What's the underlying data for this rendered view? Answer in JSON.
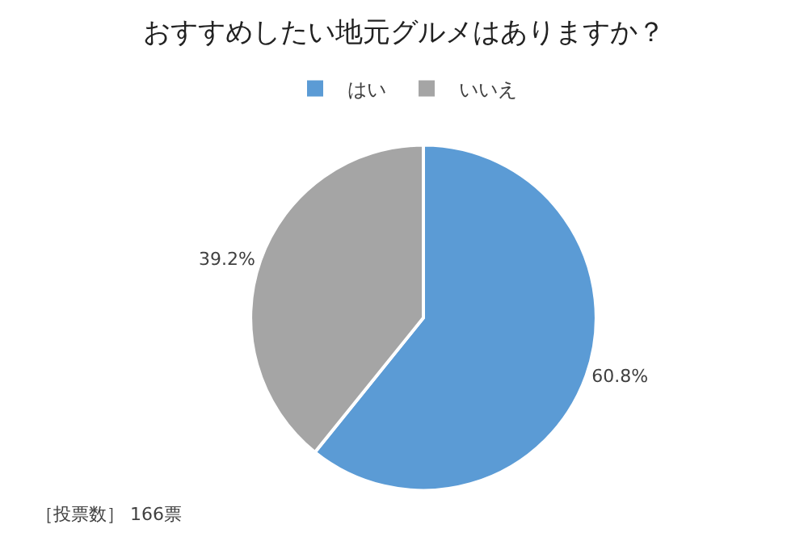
{
  "chart_data": {
    "type": "pie",
    "title": "おすすめしたい地元グルメはありますか？",
    "categories": [
      "はい",
      "いいえ"
    ],
    "values": [
      60.8,
      39.2
    ],
    "colors": [
      "#5b9bd5",
      "#a5a5a5"
    ],
    "value_labels": [
      "60.8%",
      "39.2%"
    ],
    "legend": "top",
    "annotations": [
      "［投票数］ 166票"
    ]
  }
}
